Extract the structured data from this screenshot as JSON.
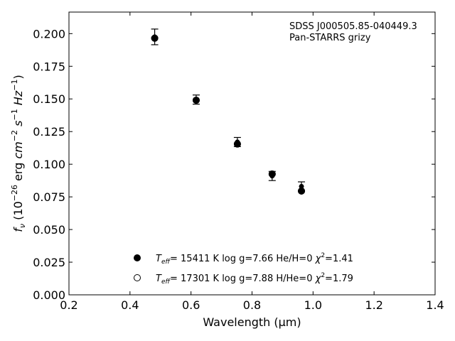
{
  "chart_data": {
    "type": "scatter",
    "xlabel": "Wavelength (μm)",
    "ylabel": "f_ν (10^-26 erg cm^-2 s^-1 Hz^-1)",
    "xlim": [
      0.2,
      1.4
    ],
    "ylim": [
      0.0,
      0.2165
    ],
    "x_ticks": [
      "0.2",
      "0.4",
      "0.6",
      "0.8",
      "1.0",
      "1.2",
      "1.4"
    ],
    "y_ticks": [
      "0.000",
      "0.025",
      "0.050",
      "0.075",
      "0.100",
      "0.125",
      "0.150",
      "0.175",
      "0.200"
    ],
    "grid": false,
    "annotation": {
      "object": "SDSS J000505.85-040449.3",
      "survey": "Pan-STARRS grizy"
    },
    "observed": {
      "x": [
        0.481,
        0.617,
        0.752,
        0.866,
        0.962
      ],
      "y": [
        0.1975,
        0.1495,
        0.117,
        0.091,
        0.083
      ],
      "yerr": [
        0.006,
        0.0035,
        0.0035,
        0.0035,
        0.0035
      ]
    },
    "series": [
      {
        "marker": "filled",
        "teff": "15411 K",
        "logg": "log g=7.66",
        "comp": "He/H=0",
        "chi2": "=1.41",
        "x": [
          0.481,
          0.617,
          0.752,
          0.866,
          0.962
        ],
        "y": [
          0.1965,
          0.149,
          0.1155,
          0.0925,
          0.0795
        ]
      },
      {
        "marker": "open",
        "teff": "17301 K",
        "logg": "log g=7.88",
        "comp": "H/He=0",
        "chi2": "=1.79",
        "x": [
          0.481,
          0.617,
          0.752,
          0.866,
          0.962
        ],
        "y": [
          0.1965,
          0.149,
          0.1155,
          0.0925,
          0.0795
        ]
      }
    ],
    "legend_position": "lower-center"
  }
}
